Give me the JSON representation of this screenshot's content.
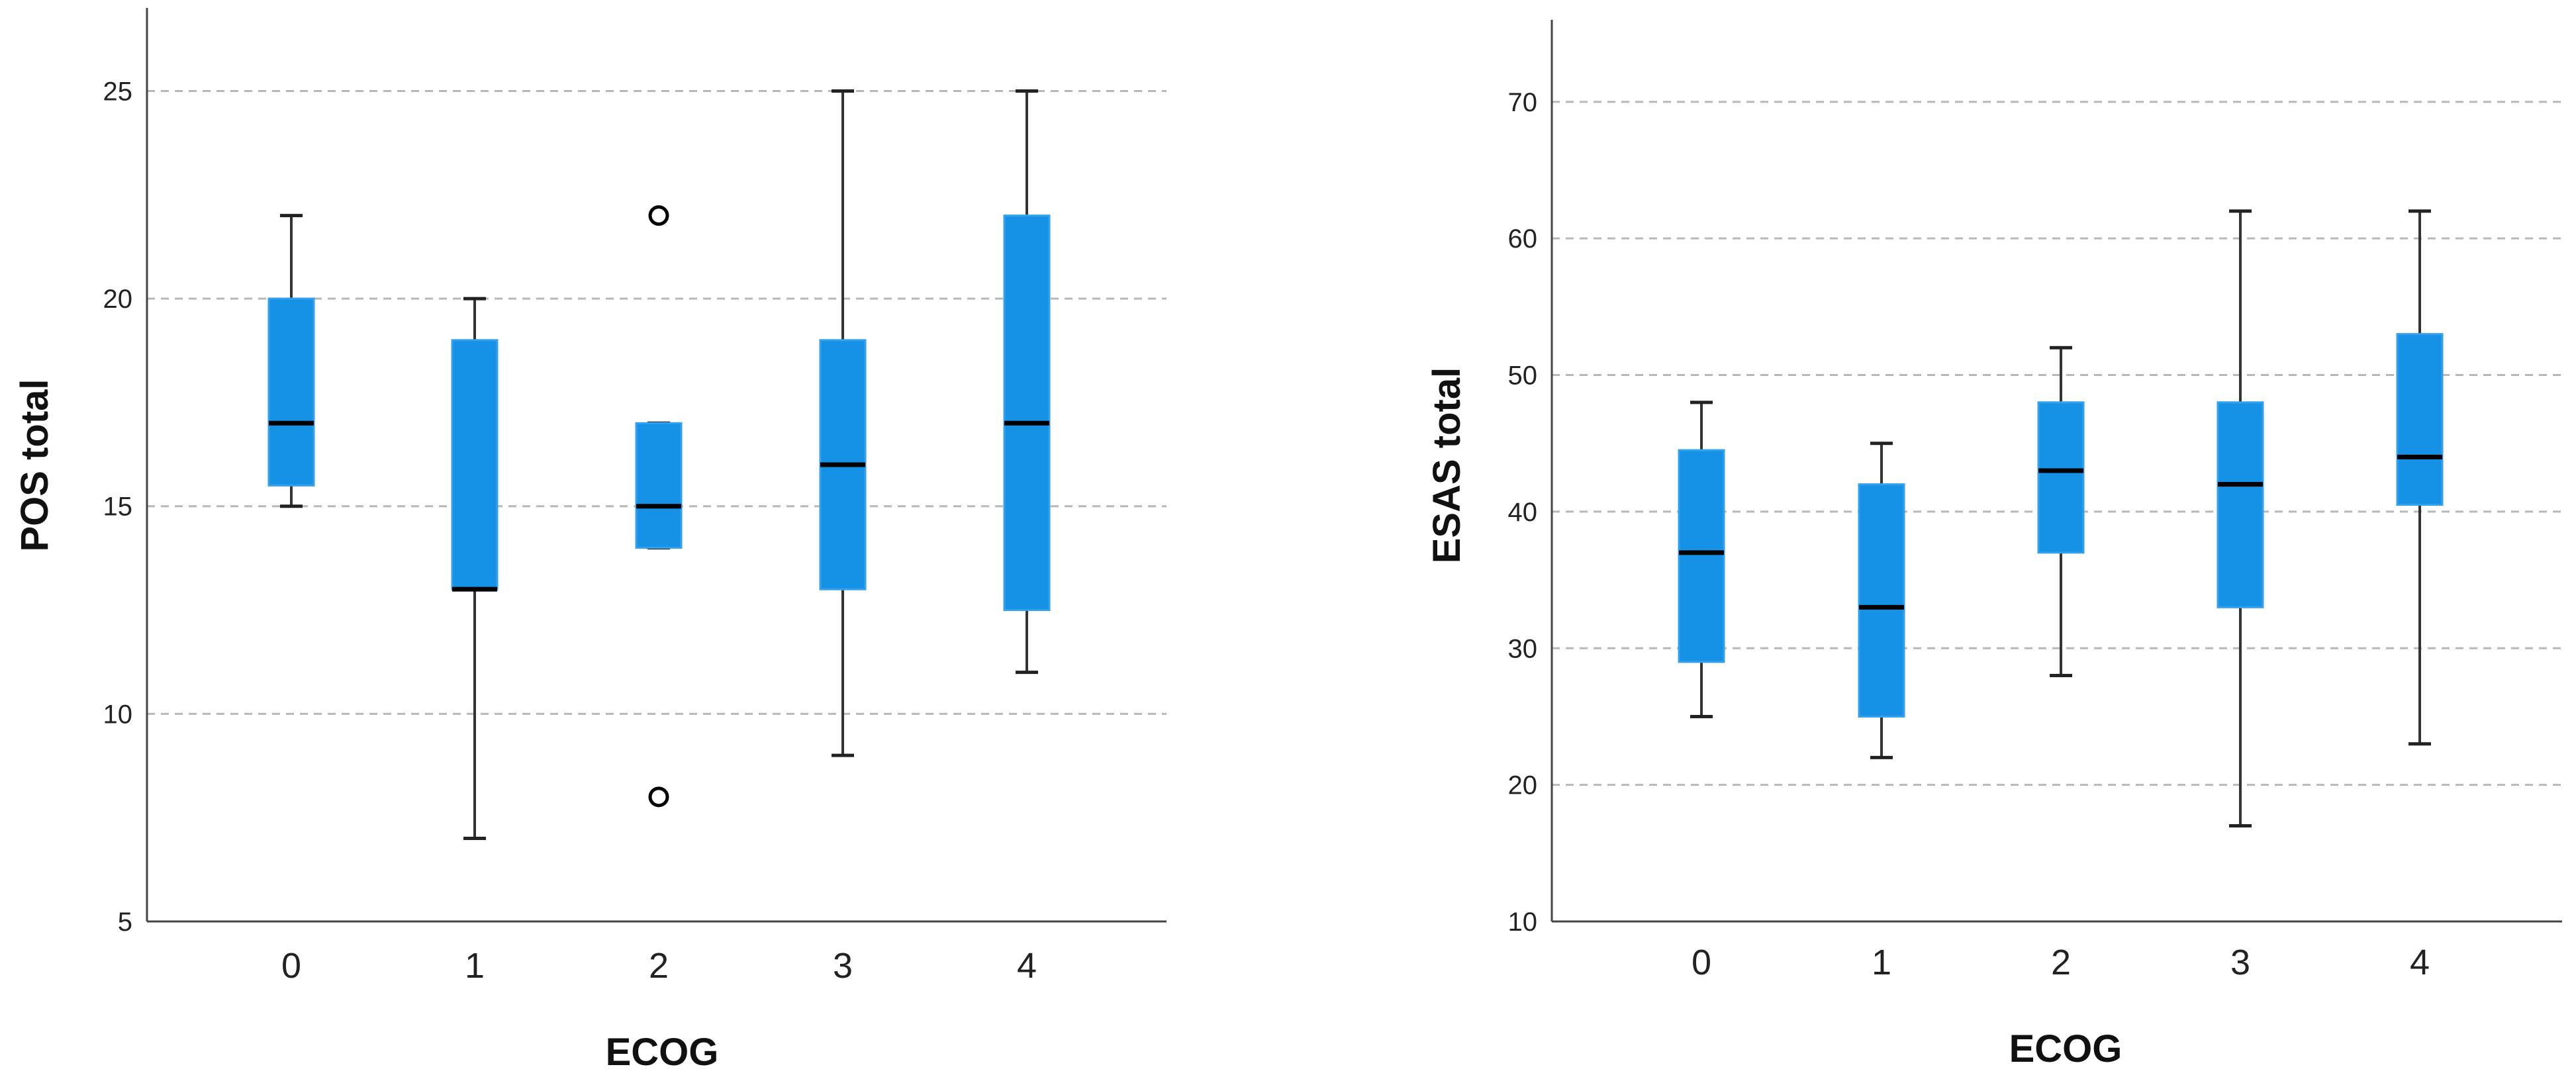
{
  "style": {
    "box_fill": "#1592E6",
    "median_color": "#000000",
    "grid_color": "#B8B8B8",
    "grid_style": "dashed"
  },
  "chart_data": [
    {
      "type": "boxplot",
      "xlabel": "ECOG",
      "ylabel": "POS total",
      "ylim": [
        5,
        27
      ],
      "yticks": [
        5,
        10,
        15,
        20,
        25
      ],
      "gridlines_at": [
        10,
        15,
        20,
        25
      ],
      "grid": true,
      "categories": [
        "0",
        "1",
        "2",
        "3",
        "4"
      ],
      "boxes": [
        {
          "category": "0",
          "whisker_low": 15,
          "q1": 15.5,
          "median": 17,
          "q3": 20,
          "whisker_high": 22,
          "outliers": []
        },
        {
          "category": "1",
          "whisker_low": 7,
          "q1": 13,
          "median": 13,
          "q3": 19,
          "whisker_high": 20,
          "outliers": []
        },
        {
          "category": "2",
          "whisker_low": 14,
          "q1": 14,
          "median": 15,
          "q3": 17,
          "whisker_high": 17,
          "outliers": [
            8,
            22
          ]
        },
        {
          "category": "3",
          "whisker_low": 9,
          "q1": 13,
          "median": 16,
          "q3": 19,
          "whisker_high": 25,
          "outliers": []
        },
        {
          "category": "4",
          "whisker_low": 11,
          "q1": 12.5,
          "median": 17,
          "q3": 22,
          "whisker_high": 25,
          "outliers": []
        }
      ]
    },
    {
      "type": "boxplot",
      "xlabel": "ECOG",
      "ylabel": "ESAS total",
      "ylim": [
        10,
        76
      ],
      "yticks": [
        10,
        20,
        30,
        40,
        50,
        60,
        70
      ],
      "gridlines_at": [
        20,
        30,
        40,
        50,
        60,
        70
      ],
      "grid": true,
      "categories": [
        "0",
        "1",
        "2",
        "3",
        "4"
      ],
      "boxes": [
        {
          "category": "0",
          "whisker_low": 25,
          "q1": 29,
          "median": 37,
          "q3": 44.5,
          "whisker_high": 48,
          "outliers": []
        },
        {
          "category": "1",
          "whisker_low": 22,
          "q1": 25,
          "median": 33,
          "q3": 42,
          "whisker_high": 45,
          "outliers": []
        },
        {
          "category": "2",
          "whisker_low": 28,
          "q1": 37,
          "median": 43,
          "q3": 48,
          "whisker_high": 52,
          "outliers": []
        },
        {
          "category": "3",
          "whisker_low": 17,
          "q1": 33,
          "median": 42,
          "q3": 48,
          "whisker_high": 62,
          "outliers": []
        },
        {
          "category": "4",
          "whisker_low": 23,
          "q1": 40.5,
          "median": 44,
          "q3": 53,
          "whisker_high": 62,
          "outliers": []
        }
      ]
    }
  ]
}
